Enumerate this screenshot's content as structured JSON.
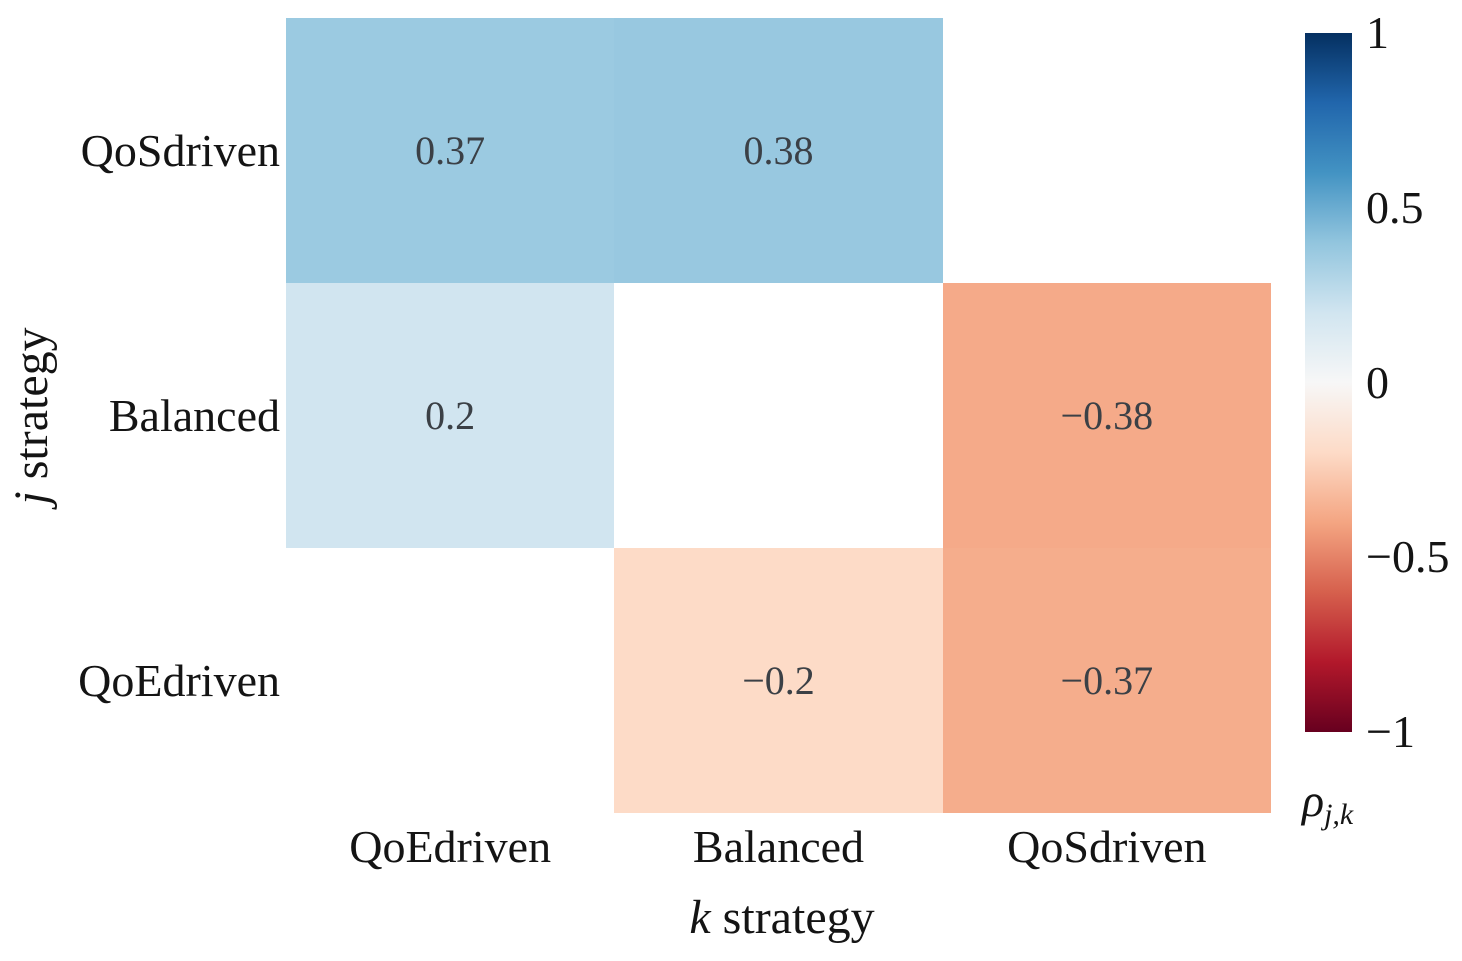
{
  "figure": {
    "background": "#ffffff",
    "text_color": "#141414"
  },
  "chart_data": {
    "type": "heatmap",
    "title": "",
    "xlabel": {
      "var": "k",
      "rest": " strategy"
    },
    "ylabel": {
      "var": "j",
      "rest": " strategy"
    },
    "rows": [
      "QoSdriven",
      "Balanced",
      "QoEdriven"
    ],
    "columns": [
      "QoEdriven",
      "Balanced",
      "QoSdriven"
    ],
    "values": [
      [
        0.37,
        0.38,
        null
      ],
      [
        0.2,
        null,
        -0.38
      ],
      [
        null,
        -0.2,
        -0.37
      ]
    ],
    "value_labels": [
      [
        "0.37",
        "0.38",
        ""
      ],
      [
        "0.2",
        "",
        "−0.38"
      ],
      [
        "",
        "−0.2",
        "−0.37"
      ]
    ],
    "cell_colors": [
      [
        "#9bcae1",
        "#98c8e0",
        null
      ],
      [
        "#d1e5f0",
        null,
        "#f5aa89"
      ],
      [
        null,
        "#fddbc7",
        "#f5ad8c"
      ]
    ],
    "masked_color": "#ffffff",
    "annotation_color": "#3b4046",
    "vmin": -1,
    "vmax": 1,
    "colormap": "RdBu",
    "grid": false,
    "colorbar": {
      "position": "right",
      "tick_values": [
        1,
        0.5,
        0,
        -0.5,
        -1
      ],
      "tick_labels": [
        "1",
        "0.5",
        "0",
        "−0.5",
        "−1"
      ],
      "label_symbol": "ρ",
      "label_subscript": "j,k",
      "gradient_stops_top_to_bottom": [
        "#053061",
        "#2166ac",
        "#4393c3",
        "#92c5de",
        "#d1e5f0",
        "#f7f7f7",
        "#fddbc7",
        "#f4a582",
        "#d6604d",
        "#b2182b",
        "#67001f"
      ]
    }
  }
}
